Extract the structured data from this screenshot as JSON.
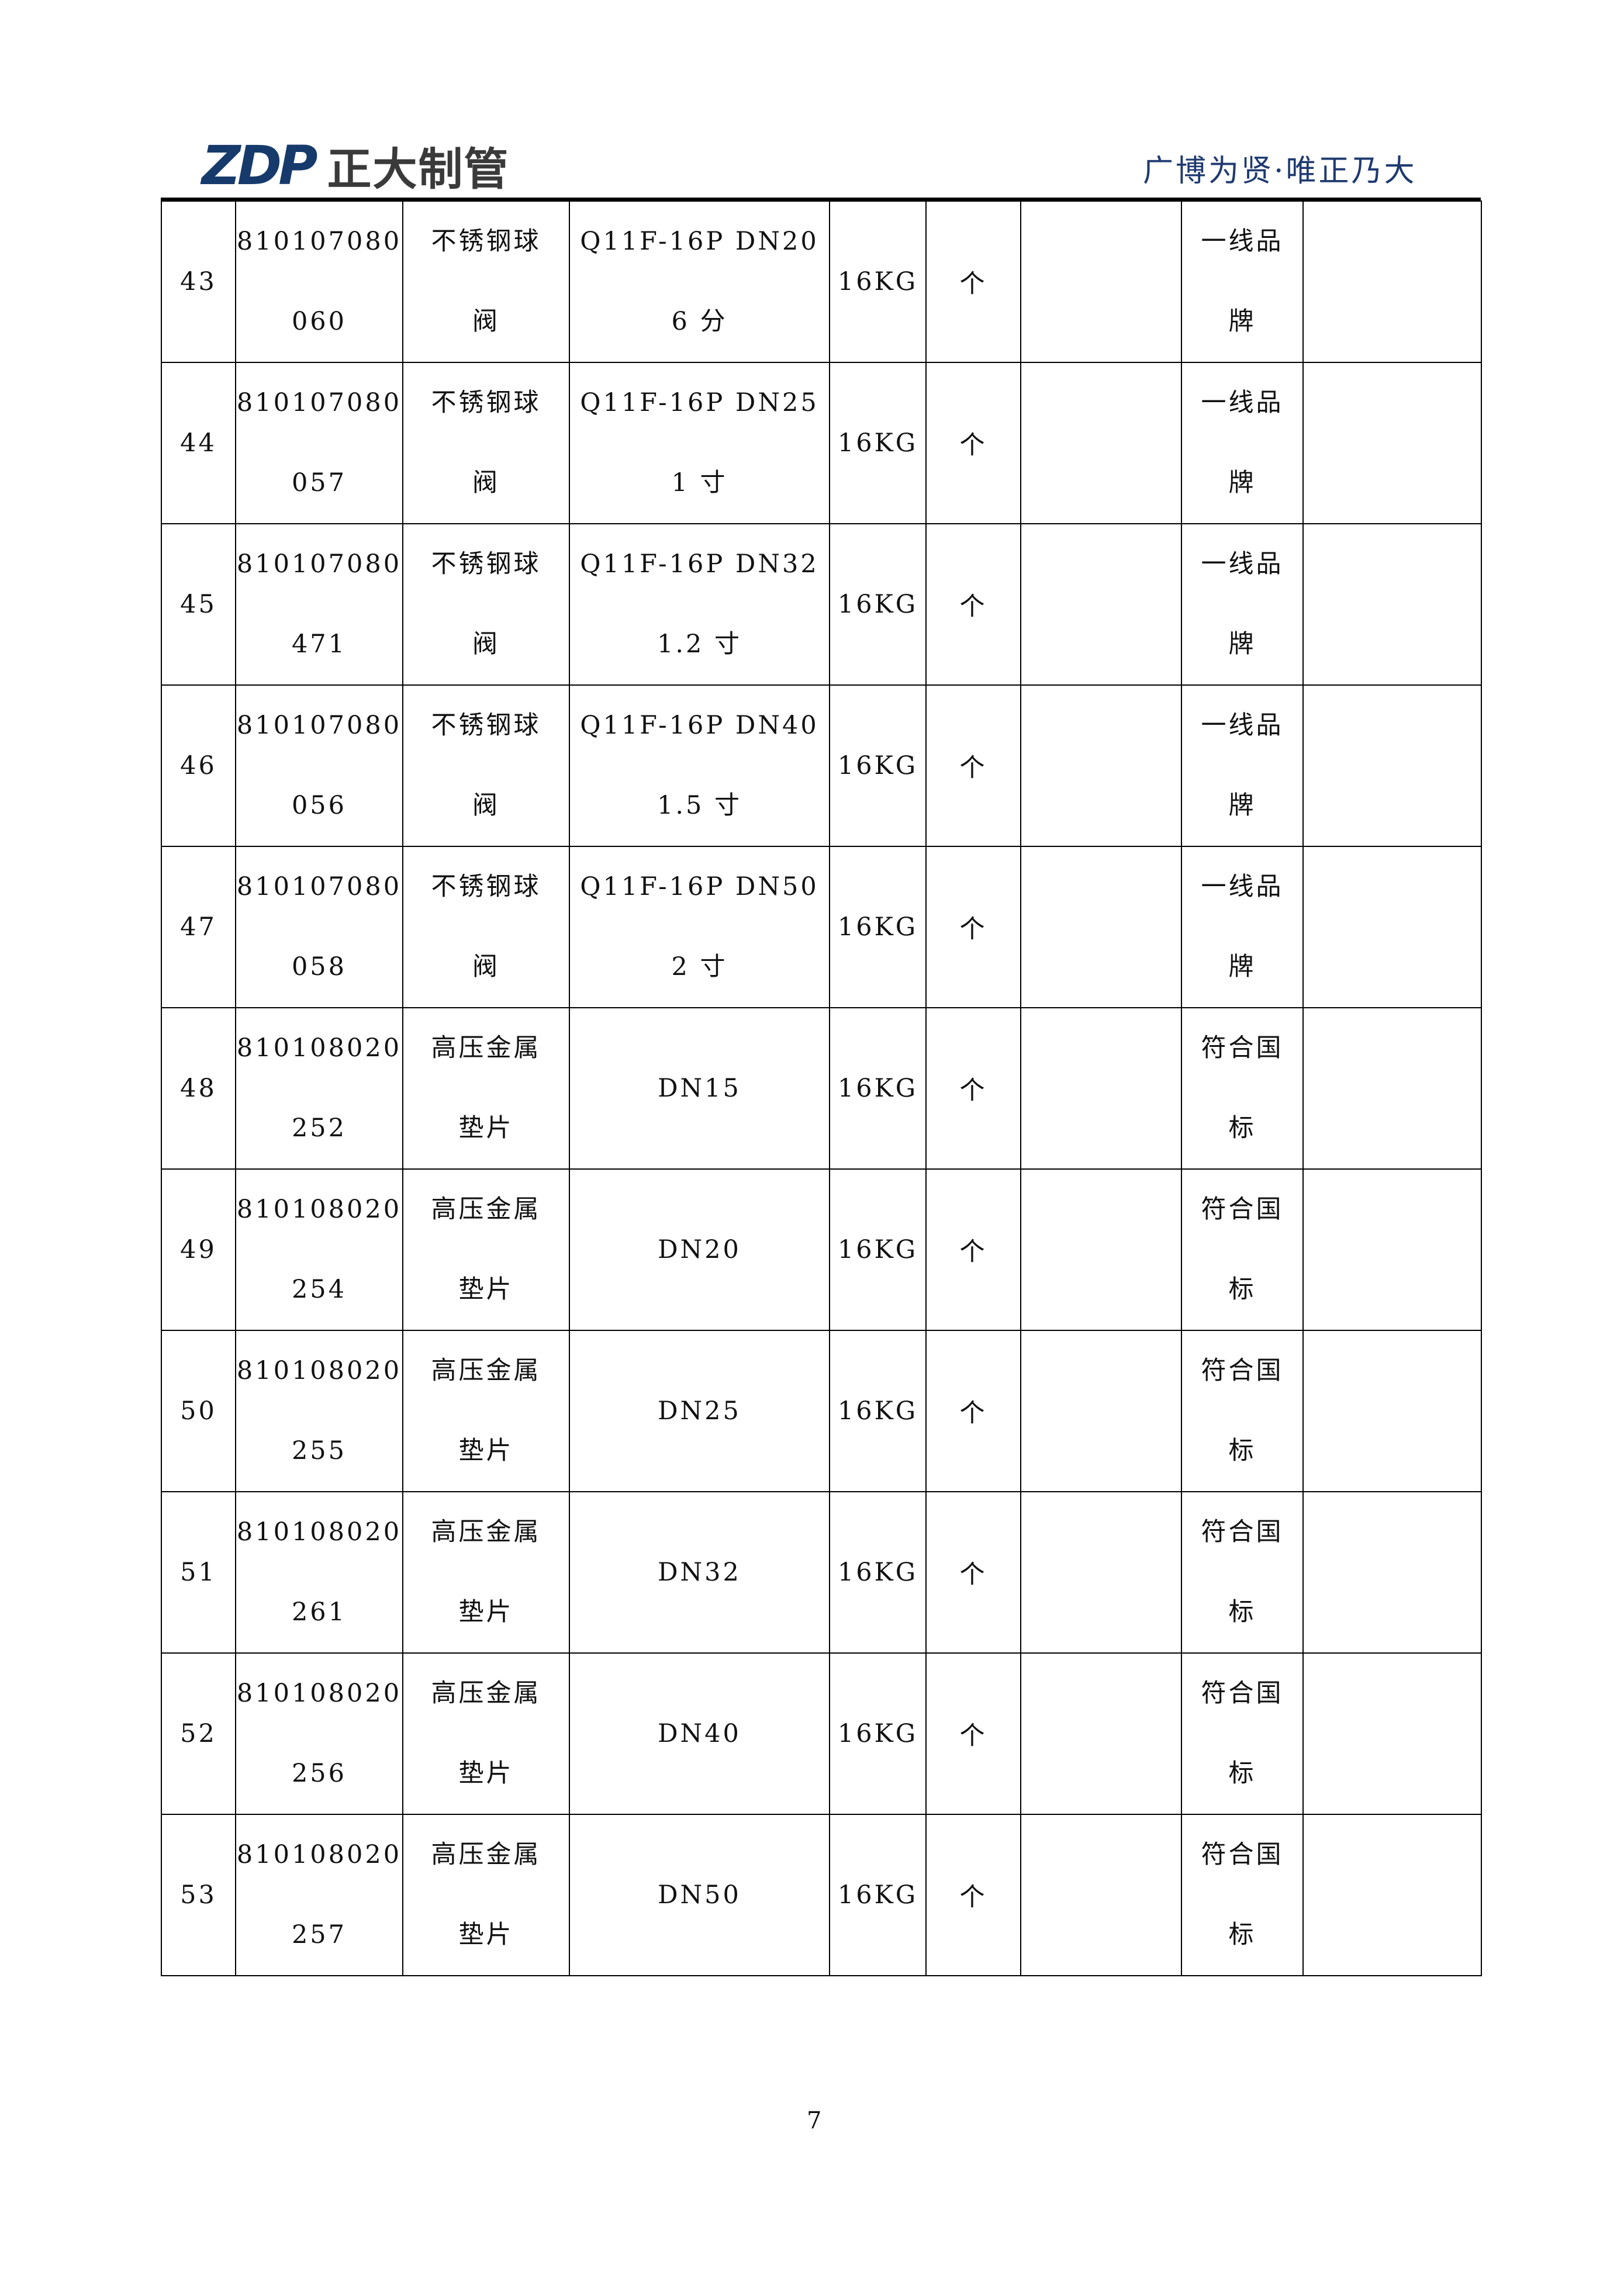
{
  "header": {
    "logo_mark": "ZDP",
    "logo_text": "正大制管",
    "slogan": "广博为贤·唯正乃大",
    "brand_color": "#163a6b"
  },
  "rows": [
    {
      "no": "43",
      "code": [
        "810107080",
        "060"
      ],
      "name": [
        "不锈钢球",
        "阀"
      ],
      "spec": [
        "Q11F-16P  DN20",
        "6 分"
      ],
      "pressure": "16KG",
      "unit": "个",
      "qty": "",
      "brand": [
        "一线品",
        "牌"
      ],
      "remark": ""
    },
    {
      "no": "44",
      "code": [
        "810107080",
        "057"
      ],
      "name": [
        "不锈钢球",
        "阀"
      ],
      "spec": [
        "Q11F-16P  DN25",
        "1 寸"
      ],
      "pressure": "16KG",
      "unit": "个",
      "qty": "",
      "brand": [
        "一线品",
        "牌"
      ],
      "remark": ""
    },
    {
      "no": "45",
      "code": [
        "810107080",
        "471"
      ],
      "name": [
        "不锈钢球",
        "阀"
      ],
      "spec": [
        "Q11F-16P DN32",
        "1.2 寸"
      ],
      "pressure": "16KG",
      "unit": "个",
      "qty": "",
      "brand": [
        "一线品",
        "牌"
      ],
      "remark": ""
    },
    {
      "no": "46",
      "code": [
        "810107080",
        "056"
      ],
      "name": [
        "不锈钢球",
        "阀"
      ],
      "spec": [
        "Q11F-16P DN40",
        "1.5 寸"
      ],
      "pressure": "16KG",
      "unit": "个",
      "qty": "",
      "brand": [
        "一线品",
        "牌"
      ],
      "remark": ""
    },
    {
      "no": "47",
      "code": [
        "810107080",
        "058"
      ],
      "name": [
        "不锈钢球",
        "阀"
      ],
      "spec": [
        "Q11F-16P  DN50",
        "2 寸"
      ],
      "pressure": "16KG",
      "unit": "个",
      "qty": "",
      "brand": [
        "一线品",
        "牌"
      ],
      "remark": ""
    },
    {
      "no": "48",
      "code": [
        "810108020",
        "252"
      ],
      "name": [
        "高压金属",
        "垫片"
      ],
      "spec": [
        "DN15",
        ""
      ],
      "pressure": "16KG",
      "unit": "个",
      "qty": "",
      "brand": [
        "符合国",
        "标"
      ],
      "remark": ""
    },
    {
      "no": "49",
      "code": [
        "810108020",
        "254"
      ],
      "name": [
        "高压金属",
        "垫片"
      ],
      "spec": [
        "DN20",
        ""
      ],
      "pressure": "16KG",
      "unit": "个",
      "qty": "",
      "brand": [
        "符合国",
        "标"
      ],
      "remark": ""
    },
    {
      "no": "50",
      "code": [
        "810108020",
        "255"
      ],
      "name": [
        "高压金属",
        "垫片"
      ],
      "spec": [
        "DN25",
        ""
      ],
      "pressure": "16KG",
      "unit": "个",
      "qty": "",
      "brand": [
        "符合国",
        "标"
      ],
      "remark": ""
    },
    {
      "no": "51",
      "code": [
        "810108020",
        "261"
      ],
      "name": [
        "高压金属",
        "垫片"
      ],
      "spec": [
        "DN32",
        ""
      ],
      "pressure": "16KG",
      "unit": "个",
      "qty": "",
      "brand": [
        "符合国",
        "标"
      ],
      "remark": ""
    },
    {
      "no": "52",
      "code": [
        "810108020",
        "256"
      ],
      "name": [
        "高压金属",
        "垫片"
      ],
      "spec": [
        "DN40",
        ""
      ],
      "pressure": "16KG",
      "unit": "个",
      "qty": "",
      "brand": [
        "符合国",
        "标"
      ],
      "remark": ""
    },
    {
      "no": "53",
      "code": [
        "810108020",
        "257"
      ],
      "name": [
        "高压金属",
        "垫片"
      ],
      "spec": [
        "DN50",
        ""
      ],
      "pressure": "16KG",
      "unit": "个",
      "qty": "",
      "brand": [
        "符合国",
        "标"
      ],
      "remark": ""
    }
  ],
  "footer": {
    "page_number": "7"
  }
}
